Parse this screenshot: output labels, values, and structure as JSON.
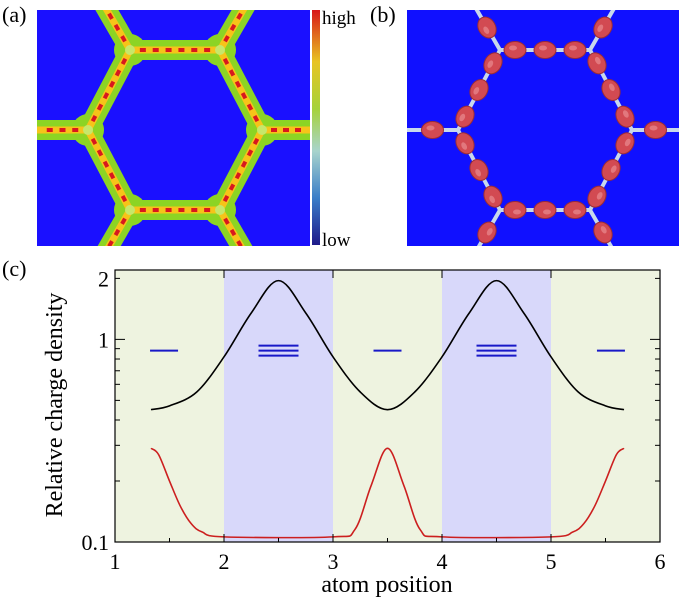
{
  "panels": {
    "a": "(a)",
    "b": "(b)",
    "c": "(c)"
  },
  "colorbar": {
    "high_label": "high",
    "low_label": "low"
  },
  "colors": {
    "map_background": "#1a10ff",
    "panel_b_background": "#1010ff",
    "lattice_green": "#8cd424",
    "lattice_core": "#f6c419",
    "lattice_dot": "#d8181e",
    "orbital_red": "#d24a52",
    "band_green": "#eef3e0",
    "band_blue": "#d8d8fa",
    "curve_black": "#000000",
    "curve_red": "#cc1f1f",
    "level_blue": "#1818c8"
  },
  "chart_data": {
    "type": "line",
    "title": "",
    "xlabel": "atom position",
    "ylabel": "Relative charge density",
    "xlim": [
      1,
      6
    ],
    "ylim": [
      0.1,
      2.2
    ],
    "yscale": "log",
    "xticks": [
      1,
      2,
      3,
      4,
      5,
      6
    ],
    "xtick_labels": [
      "1",
      "2",
      "3",
      "4",
      "5",
      "6"
    ],
    "yticks": [
      0.1,
      1,
      2
    ],
    "ytick_labels": [
      "0.1",
      "1",
      "2"
    ],
    "background_bands": [
      {
        "from": 1,
        "to": 2,
        "shade": "green"
      },
      {
        "from": 2,
        "to": 3,
        "shade": "blue"
      },
      {
        "from": 3,
        "to": 4,
        "shade": "green"
      },
      {
        "from": 4,
        "to": 5,
        "shade": "blue"
      },
      {
        "from": 5,
        "to": 6,
        "shade": "green"
      }
    ],
    "series": [
      {
        "name": "black curve",
        "color": "#000000",
        "x": [
          1.33,
          1.5,
          1.75,
          2.0,
          2.25,
          2.5,
          2.75,
          3.0,
          3.25,
          3.5,
          3.75,
          4.0,
          4.25,
          4.5,
          4.75,
          5.0,
          5.25,
          5.5,
          5.67
        ],
        "y": [
          0.45,
          0.47,
          0.55,
          0.82,
          1.35,
          1.95,
          1.35,
          0.82,
          0.55,
          0.45,
          0.55,
          0.82,
          1.35,
          1.95,
          1.35,
          0.82,
          0.55,
          0.47,
          0.45
        ]
      },
      {
        "name": "red curve",
        "color": "#cc1f1f",
        "x": [
          1.33,
          1.4,
          1.5,
          1.6,
          1.7,
          1.8,
          2.0,
          3.0,
          3.2,
          3.35,
          3.5,
          3.65,
          3.8,
          4.0,
          5.0,
          5.2,
          5.3,
          5.4,
          5.5,
          5.6,
          5.67
        ],
        "y": [
          0.29,
          0.27,
          0.2,
          0.15,
          0.123,
          0.112,
          0.106,
          0.106,
          0.115,
          0.19,
          0.29,
          0.19,
          0.115,
          0.106,
          0.106,
          0.112,
          0.123,
          0.15,
          0.2,
          0.27,
          0.29
        ]
      }
    ],
    "energy_levels": [
      {
        "x_center": 1.45,
        "y": 0.88,
        "count": 1
      },
      {
        "x_center": 2.5,
        "y": 0.88,
        "count": 3
      },
      {
        "x_center": 3.5,
        "y": 0.88,
        "count": 1
      },
      {
        "x_center": 4.5,
        "y": 0.88,
        "count": 3
      },
      {
        "x_center": 5.55,
        "y": 0.88,
        "count": 1
      }
    ]
  }
}
